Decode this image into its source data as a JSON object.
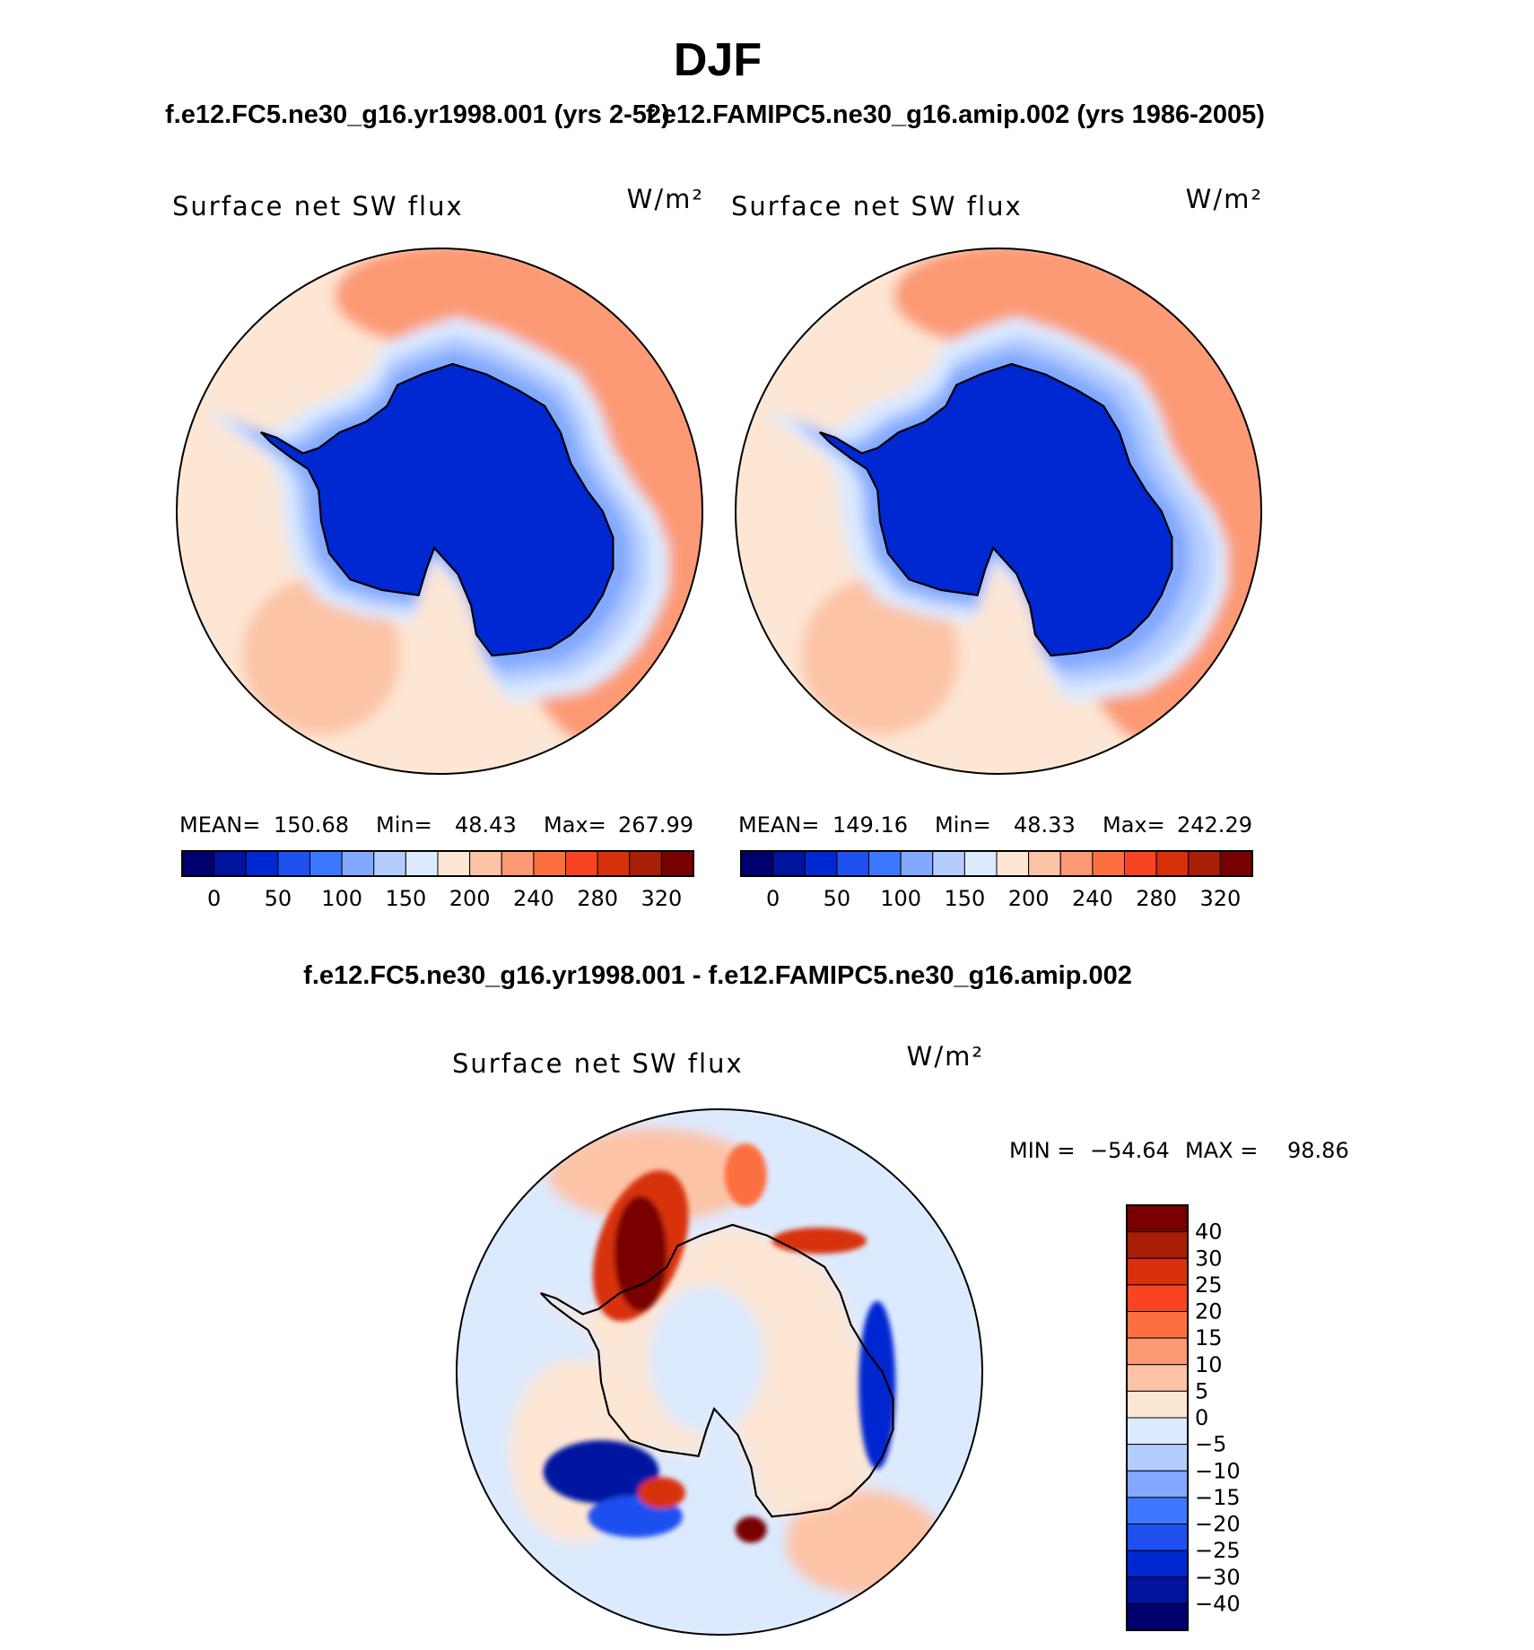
{
  "chart_data": {
    "type": "heatmap",
    "title": "DJF",
    "projection": "south polar stereographic",
    "panels": [
      {
        "id": "case1",
        "subtitle": "f.e12.FC5.ne30_g16.yr1998.001 (yrs 2-52)",
        "variable": "Surface net SW flux",
        "units": "W/m²",
        "stats": {
          "mean_label": "MEAN=",
          "mean": "150.68",
          "min_label": "Min=",
          "min": "48.43",
          "max_label": "Max=",
          "max": "267.99"
        },
        "colorbar": {
          "orientation": "horizontal",
          "levels": [
            0,
            50,
            100,
            150,
            200,
            240,
            280,
            320
          ],
          "tick_labels": [
            "0",
            "50",
            "100",
            "150",
            "200",
            "240",
            "280",
            "320"
          ],
          "colors": [
            "#00006e",
            "#0014a0",
            "#0028d2",
            "#1e50f0",
            "#3c78ff",
            "#82a8ff",
            "#b4cdff",
            "#dceaff",
            "#fde6d4",
            "#fcc3a6",
            "#fc9a74",
            "#fc7040",
            "#f84420",
            "#d8300a",
            "#a81e06",
            "#780000"
          ]
        },
        "field": {
          "antarctica": 48,
          "sea_ice_ring": 100,
          "ocean_south_pacific": 185,
          "ocean_south_atlantic": 235,
          "indian_ocean": 205
        }
      },
      {
        "id": "case2",
        "subtitle": "f.e12.FAMIPC5.ne30_g16.amip.002 (yrs 1986-2005)",
        "variable": "Surface net SW flux",
        "units": "W/m²",
        "stats": {
          "mean_label": "MEAN=",
          "mean": "149.16",
          "min_label": "Min=",
          "min": "48.33",
          "max_label": "Max=",
          "max": "242.29"
        },
        "colorbar": {
          "orientation": "horizontal",
          "levels": [
            0,
            50,
            100,
            150,
            200,
            240,
            280,
            320
          ],
          "tick_labels": [
            "0",
            "50",
            "100",
            "150",
            "200",
            "240",
            "280",
            "320"
          ],
          "colors": [
            "#00006e",
            "#0014a0",
            "#0028d2",
            "#1e50f0",
            "#3c78ff",
            "#82a8ff",
            "#b4cdff",
            "#dceaff",
            "#fde6d4",
            "#fcc3a6",
            "#fc9a74",
            "#fc7040",
            "#f84420",
            "#d8300a",
            "#a81e06",
            "#780000"
          ]
        },
        "field": {
          "antarctica": 48,
          "sea_ice_ring": 110,
          "ocean_south_pacific": 180,
          "ocean_south_atlantic": 225,
          "indian_ocean": 200
        }
      },
      {
        "id": "difference",
        "subtitle": "f.e12.FC5.ne30_g16.yr1998.001 - f.e12.FAMIPC5.ne30_g16.amip.002",
        "variable": "Surface net SW flux",
        "units": "W/m²",
        "stats": {
          "min_label": "MIN =",
          "min": "−54.64",
          "max_label": "MAX =",
          "max": "98.86"
        },
        "colorbar": {
          "orientation": "vertical",
          "levels": [
            40,
            30,
            25,
            20,
            15,
            10,
            5,
            0,
            -5,
            -10,
            -15,
            -20,
            -25,
            -30,
            -40
          ],
          "tick_labels": [
            "40",
            "30",
            "25",
            "20",
            "15",
            "10",
            "5",
            "0",
            "−5",
            "−10",
            "−15",
            "−20",
            "−25",
            "−30",
            "−40"
          ],
          "colors": [
            "#780000",
            "#a81e06",
            "#d8300a",
            "#f84420",
            "#fc7040",
            "#fc9a74",
            "#fcc3a6",
            "#fde6d4",
            "#dceaff",
            "#b4cdff",
            "#82a8ff",
            "#3c78ff",
            "#1e50f0",
            "#0028d2",
            "#0014a0",
            "#00006e"
          ]
        },
        "field": {
          "antarctica": 2,
          "weddell_sea": 45,
          "ross_sea_sector": -30,
          "east_antarctic_coast": -25,
          "open_ocean": 3
        }
      }
    ]
  }
}
